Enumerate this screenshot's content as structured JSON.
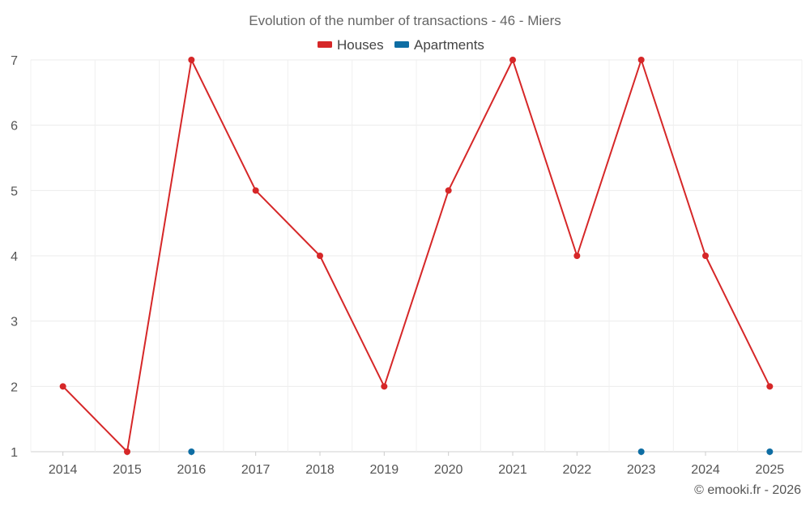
{
  "chart_data": {
    "type": "line",
    "title": "Evolution of the number of transactions - 46 - Miers",
    "categories": [
      "2014",
      "2015",
      "2016",
      "2017",
      "2018",
      "2019",
      "2020",
      "2021",
      "2022",
      "2023",
      "2024",
      "2025"
    ],
    "series": [
      {
        "name": "Houses",
        "color": "#d62728",
        "values": [
          2,
          1,
          7,
          5,
          4,
          2,
          5,
          7,
          4,
          7,
          4,
          2
        ],
        "draw_line": true
      },
      {
        "name": "Apartments",
        "color": "#0e6da3",
        "values": [
          null,
          null,
          1,
          null,
          null,
          null,
          null,
          null,
          null,
          1,
          null,
          1
        ],
        "draw_line": false
      }
    ],
    "ylim": [
      1,
      7
    ],
    "yticks": [
      1,
      2,
      3,
      4,
      5,
      6,
      7
    ],
    "xlabel": "",
    "ylabel": "",
    "grid": true,
    "legend": "top-center"
  },
  "credit": "© emooki.fr - 2026"
}
